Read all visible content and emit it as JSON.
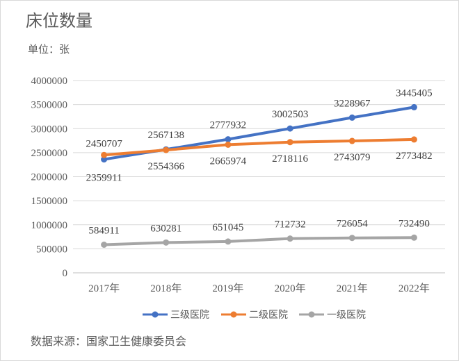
{
  "title": "床位数量",
  "unit_label": "单位：张",
  "source_label": "数据来源：国家卫生健康委员会",
  "chart_data": {
    "type": "line",
    "x": [
      "2017年",
      "2018年",
      "2019年",
      "2020年",
      "2021年",
      "2022年"
    ],
    "ylim": [
      0,
      4000000
    ],
    "yticks": [
      0,
      500000,
      1000000,
      1500000,
      2000000,
      2500000,
      3000000,
      3500000,
      4000000
    ],
    "grid": true,
    "legend_position": "bottom",
    "series": [
      {
        "name": "三级医院",
        "color": "#4472c4",
        "values": [
          2359911,
          2567138,
          2777932,
          3002503,
          3228967,
          3445405
        ],
        "label_position": "mixed"
      },
      {
        "name": "二级医院",
        "color": "#ed7d31",
        "values": [
          2450707,
          2554366,
          2665974,
          2718116,
          2743079,
          2773482
        ],
        "label_position": "mixed"
      },
      {
        "name": "一级医院",
        "color": "#a5a5a5",
        "values": [
          584911,
          630281,
          651045,
          712732,
          726054,
          732490
        ],
        "label_position": "above"
      }
    ]
  }
}
